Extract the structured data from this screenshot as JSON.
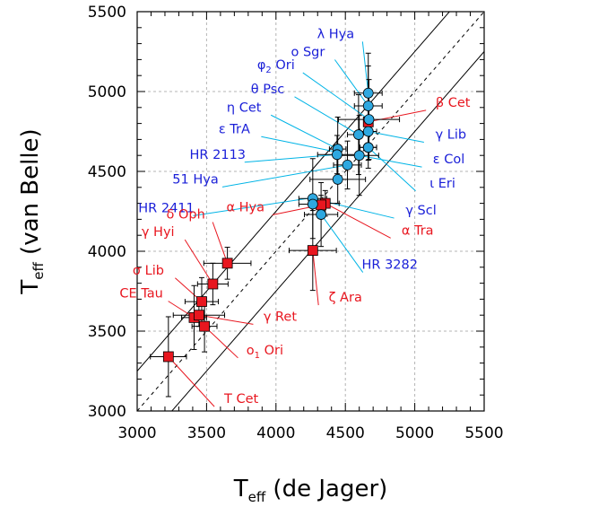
{
  "chart_data": {
    "type": "scatter",
    "xlabel": {
      "main": "T",
      "sub": "eff",
      "rest": " (de Jager)"
    },
    "ylabel": {
      "main": "T",
      "sub": "eff",
      "rest": " (van Belle)"
    },
    "xlim": [
      3000,
      5500
    ],
    "ylim": [
      3000,
      5500
    ],
    "xticks": [
      3000,
      3500,
      4000,
      4500,
      5000,
      5500
    ],
    "yticks": [
      3000,
      3500,
      4000,
      4500,
      5000,
      5500
    ],
    "grid": true,
    "reference_lines": {
      "identity": "dashed",
      "offsets": [
        -250,
        250
      ]
    },
    "colors": {
      "red": "#e8161f",
      "blue": "#1a1fd8",
      "cyan_fill": "#2ea8e0",
      "cyan_leader": "#00b4e6",
      "red_leader": "#e8161f"
    },
    "series": [
      {
        "marker": "square",
        "color": "#e8161f",
        "points": [
          {
            "label": "β Cet",
            "x": 4665,
            "y": 4810,
            "xerr": 0,
            "yerr": 0
          },
          {
            "label": "α Tra",
            "x": 4355,
            "y": 4300,
            "xerr": 100,
            "yerr": 80
          },
          {
            "label": "α Hya",
            "x": 4325,
            "y": 4290,
            "xerr": 60,
            "yerr": 60
          },
          {
            "label": "ζ Ara",
            "x": 4265,
            "y": 4005,
            "xerr": 170,
            "yerr": 250
          },
          {
            "label": "δ Oph",
            "x": 3650,
            "y": 3925,
            "xerr": 170,
            "yerr": 100
          },
          {
            "label": "γ Hyi",
            "x": 3545,
            "y": 3795,
            "xerr": 110,
            "yerr": 130
          },
          {
            "label": "σ Lib",
            "x": 3465,
            "y": 3685,
            "xerr": 120,
            "yerr": 150
          },
          {
            "label": "CE Tau",
            "x": 3410,
            "y": 3585,
            "xerr": 90,
            "yerr": 200
          },
          {
            "label": "γ Ret",
            "x": 3445,
            "y": 3600,
            "xerr": 185,
            "yerr": 70
          },
          {
            "label": "ο1 Ori",
            "x": 3485,
            "y": 3530,
            "xerr": 90,
            "yerr": 160
          },
          {
            "label": "T Cet",
            "x": 3225,
            "y": 3340,
            "xerr": 130,
            "yerr": 250
          }
        ]
      },
      {
        "marker": "circle",
        "color": "#2ea8e0",
        "points": [
          {
            "label": "λ Hya",
            "x": 4665,
            "y": 4990,
            "xerr": 100,
            "yerr": 250
          },
          {
            "label": "ο Sgr",
            "x": 4665,
            "y": 4910,
            "xerr": 100,
            "yerr": 250
          },
          {
            "label": "φ2 Ori",
            "x": 4670,
            "y": 4825,
            "xerr": 220,
            "yerr": 250
          },
          {
            "label": "θ Psc",
            "x": 4595,
            "y": 4730,
            "xerr": 80,
            "yerr": 250
          },
          {
            "label": "η Cet",
            "x": 4665,
            "y": 4650,
            "xerr": 60,
            "yerr": 130
          },
          {
            "label": "ε TrA",
            "x": 4445,
            "y": 4640,
            "xerr": 60,
            "yerr": 200
          },
          {
            "label": "HR 2113",
            "x": 4440,
            "y": 4605,
            "xerr": 140,
            "yerr": 120
          },
          {
            "label": "51 Hya",
            "x": 4515,
            "y": 4540,
            "xerr": 100,
            "yerr": 150
          },
          {
            "label": "HR 2411",
            "x": 4445,
            "y": 4450,
            "xerr": 200,
            "yerr": 150
          },
          {
            "label": "γ Lib",
            "x": 4665,
            "y": 4750,
            "xerr": 60,
            "yerr": 180
          },
          {
            "label": "ε Col",
            "x": 4600,
            "y": 4600,
            "xerr": 140,
            "yerr": 250
          },
          {
            "label": "ι Eri",
            "x": 4665,
            "y": 4650,
            "xerr": 60,
            "yerr": 0
          },
          {
            "label": "γ Scl",
            "x": 4265,
            "y": 4330,
            "xerr": 100,
            "yerr": 250
          },
          {
            "label": "HR 3282",
            "x": 4325,
            "y": 4230,
            "xerr": 120,
            "yerr": 200
          },
          {
            "label": "",
            "x": 4265,
            "y": 4295,
            "xerr": 100,
            "yerr": 0
          }
        ]
      }
    ],
    "labels": [
      {
        "text": "λ Hya",
        "sub": "",
        "color": "#1a1fd8",
        "lx": 4430,
        "ly": 5335,
        "to": [
          4665,
          4990
        ],
        "lead": "#00b4e6",
        "anchor": "middle"
      },
      {
        "text": "ο Sgr",
        "sub": "",
        "color": "#1a1fd8",
        "lx": 4230,
        "ly": 5222,
        "to": [
          4665,
          4910
        ],
        "lead": "#00b4e6",
        "anchor": "middle"
      },
      {
        "text": "φ",
        "sub": "2",
        "rest": " Ori",
        "color": "#1a1fd8",
        "lx": 4000,
        "ly": 5140,
        "to": [
          4670,
          4825
        ],
        "lead": "#00b4e6",
        "anchor": "middle"
      },
      {
        "text": "θ Psc",
        "sub": "",
        "color": "#1a1fd8",
        "lx": 3940,
        "ly": 4990,
        "to": [
          4595,
          4730
        ],
        "lead": "#00b4e6",
        "anchor": "middle"
      },
      {
        "text": "η Cet",
        "sub": "",
        "color": "#1a1fd8",
        "lx": 3770,
        "ly": 4875,
        "to": [
          4445,
          4640
        ],
        "lead": "#00b4e6",
        "anchor": "middle"
      },
      {
        "text": "ε TrA",
        "sub": "",
        "color": "#1a1fd8",
        "lx": 3700,
        "ly": 4740,
        "to": [
          4445,
          4620
        ],
        "lead": "#00b4e6",
        "anchor": "middle"
      },
      {
        "text": "HR 2113",
        "sub": "",
        "color": "#1a1fd8",
        "lx": 3580,
        "ly": 4580,
        "to": [
          4440,
          4605
        ],
        "lead": "#00b4e6",
        "anchor": "middle"
      },
      {
        "text": "51 Hya",
        "sub": "",
        "color": "#1a1fd8",
        "lx": 3420,
        "ly": 4425,
        "to": [
          4515,
          4540
        ],
        "lead": "#00b4e6",
        "anchor": "middle"
      },
      {
        "text": "HR 2411",
        "sub": "",
        "color": "#1a1fd8",
        "lx": 3210,
        "ly": 4245,
        "to": [
          4260,
          4335
        ],
        "lead": "#00b4e6",
        "anchor": "middle"
      },
      {
        "text": "β Cet",
        "sub": "",
        "color": "#e8161f",
        "lx": 5275,
        "ly": 4905,
        "to": [
          4665,
          4810
        ],
        "lead": "#e8161f",
        "anchor": "middle"
      },
      {
        "text": "γ Lib",
        "sub": "",
        "color": "#1a1fd8",
        "lx": 5260,
        "ly": 4705,
        "to": [
          4665,
          4750
        ],
        "lead": "#00b4e6",
        "anchor": "middle"
      },
      {
        "text": "ε Col",
        "sub": "",
        "color": "#1a1fd8",
        "lx": 5245,
        "ly": 4550,
        "to": [
          4600,
          4600
        ],
        "lead": "#00b4e6",
        "anchor": "middle"
      },
      {
        "text": "ι Eri",
        "sub": "",
        "color": "#1a1fd8",
        "lx": 5200,
        "ly": 4400,
        "to": [
          4665,
          4650
        ],
        "lead": "#00b4e6",
        "anchor": "middle"
      },
      {
        "text": "γ Scl",
        "sub": "",
        "color": "#1a1fd8",
        "lx": 5045,
        "ly": 4230,
        "to": [
          4265,
          4330
        ],
        "lead": "#00b4e6",
        "anchor": "middle"
      },
      {
        "text": "α Tra",
        "sub": "",
        "color": "#e8161f",
        "lx": 5020,
        "ly": 4105,
        "to": [
          4355,
          4300
        ],
        "lead": "#e8161f",
        "anchor": "middle"
      },
      {
        "text": "HR 3282",
        "sub": "",
        "color": "#1a1fd8",
        "lx": 4820,
        "ly": 3890,
        "to": [
          4330,
          4225
        ],
        "lead": "#00b4e6",
        "anchor": "middle"
      },
      {
        "text": "ζ Ara",
        "sub": "",
        "color": "#e8161f",
        "lx": 4500,
        "ly": 3685,
        "to": [
          4265,
          4005
        ],
        "lead": "#e8161f",
        "anchor": "middle"
      },
      {
        "text": "α Hya",
        "sub": "",
        "color": "#e8161f",
        "lx": 3780,
        "ly": 4250,
        "to": [
          4325,
          4290
        ],
        "lead": "#e8161f",
        "anchor": "middle"
      },
      {
        "text": "δ Oph",
        "sub": "",
        "color": "#e8161f",
        "lx": 3350,
        "ly": 4205,
        "to": [
          3650,
          3925
        ],
        "lead": "#e8161f",
        "anchor": "middle"
      },
      {
        "text": "γ Hyi",
        "sub": "",
        "color": "#e8161f",
        "lx": 3150,
        "ly": 4095,
        "to": [
          3545,
          3795
        ],
        "lead": "#e8161f",
        "anchor": "middle"
      },
      {
        "text": "σ Lib",
        "sub": "",
        "color": "#e8161f",
        "lx": 3080,
        "ly": 3855,
        "to": [
          3465,
          3685
        ],
        "lead": "#e8161f",
        "anchor": "middle"
      },
      {
        "text": "CE Tau",
        "sub": "",
        "color": "#e8161f",
        "lx": 3030,
        "ly": 3710,
        "to": [
          3410,
          3585
        ],
        "lead": "#e8161f",
        "anchor": "middle"
      },
      {
        "text": "γ Ret",
        "sub": "",
        "color": "#e8161f",
        "lx": 4030,
        "ly": 3565,
        "to": [
          3445,
          3600
        ],
        "lead": "#e8161f",
        "anchor": "middle"
      },
      {
        "text": "ο",
        "sub": "1",
        "rest": " Ori",
        "color": "#e8161f",
        "lx": 3920,
        "ly": 3355,
        "to": [
          3485,
          3530
        ],
        "lead": "#e8161f",
        "anchor": "middle"
      },
      {
        "text": "T Cet",
        "sub": "",
        "color": "#e8161f",
        "lx": 3750,
        "ly": 3050,
        "to": [
          3225,
          3340
        ],
        "lead": "#e8161f",
        "anchor": "middle"
      }
    ]
  }
}
